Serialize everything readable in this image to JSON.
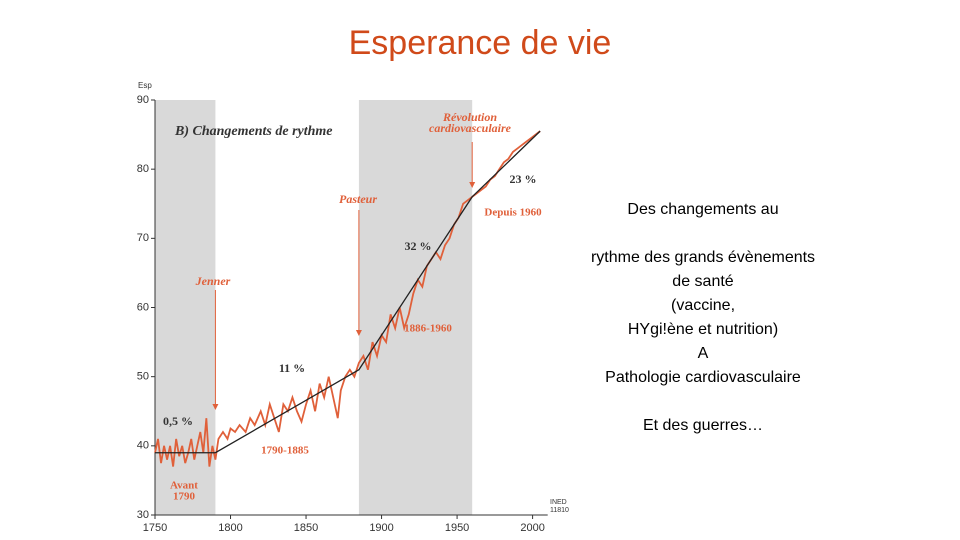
{
  "title": "Esperance de vie",
  "chart_data": {
    "type": "line",
    "title": "B) Changements de rythme",
    "y_label": "Esp",
    "source": [
      "INED",
      "11810"
    ],
    "x": [
      1750,
      1752,
      1754,
      1756,
      1758,
      1760,
      1762,
      1764,
      1766,
      1768,
      1770,
      1772,
      1774,
      1776,
      1778,
      1780,
      1782,
      1784,
      1786,
      1788,
      1790,
      1792,
      1795,
      1798,
      1800,
      1803,
      1806,
      1810,
      1813,
      1816,
      1820,
      1823,
      1826,
      1829,
      1832,
      1835,
      1838,
      1841,
      1844,
      1847,
      1850,
      1853,
      1856,
      1859,
      1862,
      1865,
      1868,
      1871,
      1873,
      1876,
      1879,
      1882,
      1885,
      1888,
      1891,
      1894,
      1897,
      1900,
      1903,
      1906,
      1909,
      1912,
      1915,
      1918,
      1921,
      1924,
      1927,
      1930,
      1933,
      1936,
      1939,
      1942,
      1945,
      1948,
      1951,
      1954,
      1957,
      1960,
      1963,
      1966,
      1969,
      1972,
      1975,
      1978,
      1981,
      1984,
      1987,
      1990,
      1993,
      1996,
      1999,
      2002,
      2005
    ],
    "series": [
      {
        "color": "#e0603a",
        "values": [
          39,
          41,
          37.5,
          40,
          38,
          40,
          37,
          41,
          38.5,
          40,
          37.5,
          39,
          41,
          38,
          40,
          42,
          39,
          44,
          37,
          40,
          38,
          41,
          42,
          41,
          42.5,
          42,
          43,
          42,
          44,
          43,
          45,
          43,
          46,
          44,
          42,
          46,
          45,
          47,
          45,
          43.5,
          46,
          48,
          45,
          49,
          47,
          50,
          47,
          44,
          48,
          50,
          51,
          50,
          52,
          53,
          51,
          55,
          53,
          56,
          55,
          59,
          57,
          60,
          57,
          59,
          62,
          64,
          63,
          66,
          67,
          68,
          67,
          69,
          70,
          72,
          73,
          75,
          75.5,
          76,
          76.5,
          77,
          77.5,
          78.5,
          79,
          80,
          81,
          81.5,
          82.5,
          83,
          83.5,
          84,
          84.5,
          85,
          85.5
        ]
      }
    ],
    "trend": {
      "color": "#222222",
      "x": [
        1750,
        1790,
        1885,
        1960,
        2005
      ],
      "values": [
        39,
        39,
        51,
        76,
        85.5
      ]
    },
    "shaded_spans": [
      [
        1750,
        1790
      ],
      [
        1885,
        1960
      ]
    ],
    "shade_color": "#d9d9d9",
    "xlim": [
      1750,
      2010
    ],
    "ylim": [
      30,
      90
    ],
    "xticks": [
      1750,
      1800,
      1850,
      1900,
      1950,
      2000
    ],
    "yticks": [
      30,
      40,
      50,
      60,
      70,
      80,
      90
    ],
    "annotations": [
      {
        "text": [
          "Jenner"
        ],
        "x": 1790
      },
      {
        "text": [
          "Pasteur"
        ],
        "x": 1885
      },
      {
        "text": [
          "Révolution",
          "cardiovasculaire"
        ],
        "x": 1960
      }
    ],
    "rate_labels": [
      "0,5 %",
      "11 %",
      "32 %",
      "23 %"
    ],
    "period_labels": [
      [
        "Avant",
        "1790"
      ],
      [
        "1790-1885"
      ],
      [
        "1886-1960"
      ],
      [
        "Depuis 1960"
      ]
    ]
  },
  "side_text": [
    [
      "Des changements  au"
    ],
    [
      "rythme des  grands évènements",
      "de santé",
      "(vaccine,",
      "HYgi!ène et nutrition)",
      "A",
      "Pathologie cardiovasculaire"
    ],
    [
      "Et des guerres…"
    ]
  ]
}
